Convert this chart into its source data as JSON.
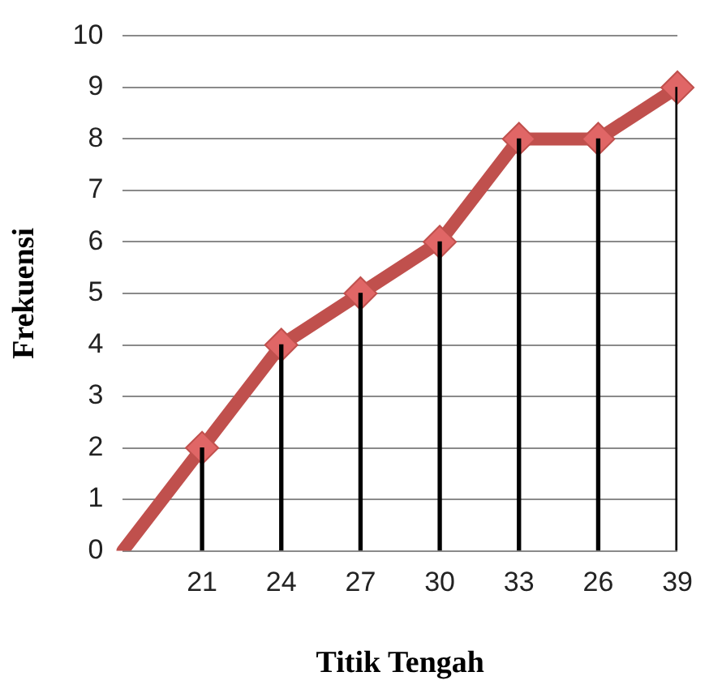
{
  "chart_data": {
    "type": "line",
    "xlabel": "Titik Tengah",
    "ylabel": "Frekuensi",
    "categories": [
      null,
      "21",
      "24",
      "27",
      "30",
      "33",
      "26",
      "39"
    ],
    "series": [
      {
        "color": "#c0504d",
        "values": [
          0,
          2,
          4,
          5,
          6,
          8,
          8,
          9
        ]
      },
      {
        "type": "bar",
        "color": "#000000",
        "values": [
          null,
          2,
          4,
          5,
          6,
          8,
          8,
          9
        ]
      }
    ],
    "ylim": [
      0,
      10
    ],
    "yticks": [
      0,
      1,
      2,
      3,
      4,
      5,
      6,
      7,
      8,
      9,
      10
    ],
    "grid": "y",
    "legend": false,
    "marker": "diamond",
    "line_style": "solid"
  }
}
